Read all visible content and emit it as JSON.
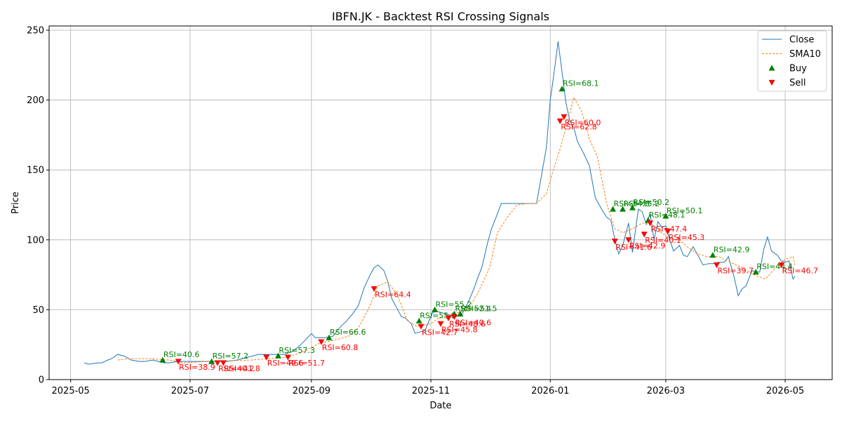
{
  "chart_data": {
    "type": "line",
    "title": "IBFN.JK - Backtest RSI Crossing Signals",
    "xlabel": "Date",
    "ylabel": "Price",
    "ylim": [
      0,
      253
    ],
    "yticks": [
      0,
      50,
      100,
      150,
      200,
      250
    ],
    "xlim": [
      "2025-04-20",
      "2026-05-25"
    ],
    "xticks": [
      "2025-05-01",
      "2025-07-01",
      "2025-09-01",
      "2025-11-01",
      "2026-01-01",
      "2026-03-01",
      "2026-05-01"
    ],
    "xtick_labels": [
      "2025-05",
      "2025-07",
      "2025-09",
      "2025-11",
      "2026-01",
      "2026-03",
      "2026-05"
    ],
    "grid": true,
    "legend_position": "top-right",
    "colors": {
      "close": "#1f77b4",
      "sma": "#ff7f0e",
      "buy": "#008000",
      "sell": "#ff0000"
    },
    "series": [
      {
        "name": "Close",
        "x": [
          "2025-05-08",
          "2025-05-10",
          "2025-05-15",
          "2025-05-17",
          "2025-05-20",
          "2025-05-22",
          "2025-05-25",
          "2025-05-28",
          "2025-06-01",
          "2025-06-05",
          "2025-06-08",
          "2025-06-12",
          "2025-06-15",
          "2025-06-18",
          "2025-06-20",
          "2025-06-25",
          "2025-06-28",
          "2025-07-05",
          "2025-07-15",
          "2025-07-20",
          "2025-07-25",
          "2025-08-05",
          "2025-08-12",
          "2025-08-18",
          "2025-08-22",
          "2025-08-25",
          "2025-08-28",
          "2025-09-01",
          "2025-09-03",
          "2025-09-08",
          "2025-09-12",
          "2025-09-16",
          "2025-09-19",
          "2025-09-22",
          "2025-09-25",
          "2025-09-28",
          "2025-10-01",
          "2025-10-03",
          "2025-10-05",
          "2025-10-08",
          "2025-10-10",
          "2025-10-12",
          "2025-10-17",
          "2025-10-19",
          "2025-10-22",
          "2025-10-24",
          "2025-10-26",
          "2025-10-29",
          "2025-10-31",
          "2025-11-02",
          "2025-11-04",
          "2025-11-06",
          "2025-11-09",
          "2025-11-11",
          "2025-11-14",
          "2025-11-17",
          "2025-11-20",
          "2025-11-23",
          "2025-11-25",
          "2025-11-27",
          "2025-11-30",
          "2025-12-02",
          "2025-12-04",
          "2025-12-07",
          "2025-12-10",
          "2025-12-13",
          "2025-12-16",
          "2025-12-19",
          "2025-12-22",
          "2025-12-25",
          "2025-12-28",
          "2025-12-30",
          "2026-01-01",
          "2026-01-03",
          "2026-01-05",
          "2026-01-07",
          "2026-01-09",
          "2026-01-11",
          "2026-01-13",
          "2026-01-15",
          "2026-01-18",
          "2026-01-21",
          "2026-01-24",
          "2026-01-26",
          "2026-01-28",
          "2026-01-30",
          "2026-02-01",
          "2026-02-03",
          "2026-02-05",
          "2026-02-07",
          "2026-02-10",
          "2026-02-12",
          "2026-02-15",
          "2026-02-17",
          "2026-02-19",
          "2026-02-21",
          "2026-02-23",
          "2026-02-25",
          "2026-02-27",
          "2026-03-01",
          "2026-03-03",
          "2026-03-05",
          "2026-03-08",
          "2026-03-10",
          "2026-03-12",
          "2026-03-15",
          "2026-03-17",
          "2026-03-20",
          "2026-03-23",
          "2026-03-25",
          "2026-03-28",
          "2026-03-31",
          "2026-04-02",
          "2026-04-05",
          "2026-04-07",
          "2026-04-09",
          "2026-04-11",
          "2026-04-14",
          "2026-04-16",
          "2026-04-18",
          "2026-04-20",
          "2026-04-22",
          "2026-04-24",
          "2026-04-27",
          "2026-04-29",
          "2026-05-01",
          "2026-05-03",
          "2026-05-05",
          "2026-05-06"
        ],
        "values": [
          12,
          11,
          12,
          12,
          14,
          15,
          18,
          17,
          14,
          13,
          13,
          14,
          13,
          12,
          12,
          13,
          13,
          13,
          13,
          13,
          14,
          18,
          18,
          18,
          20,
          23,
          27,
          33,
          30,
          30,
          31,
          38,
          42,
          47,
          53,
          66,
          75,
          80,
          82,
          78,
          70,
          58,
          45,
          44,
          40,
          33,
          34,
          35,
          42,
          48,
          49,
          48,
          47,
          46,
          45,
          47,
          55,
          65,
          73,
          80,
          98,
          108,
          115,
          126,
          126,
          126,
          126,
          126,
          126,
          126,
          150,
          166,
          200,
          220,
          242,
          220,
          198,
          185,
          180,
          170,
          162,
          153,
          130,
          125,
          120,
          116,
          114,
          100,
          90,
          96,
          112,
          91,
          122,
          120,
          111,
          119,
          100,
          113,
          109,
          110,
          100,
          92,
          96,
          89,
          88,
          95,
          90,
          82,
          83,
          83,
          84,
          84,
          88,
          73,
          60,
          65,
          67,
          78,
          77,
          77,
          93,
          102,
          92,
          89,
          85,
          84,
          85,
          72,
          74
        ],
        "x_from_index": false
      },
      {
        "name": "SMA10",
        "x": [
          "2025-05-25",
          "2025-06-01",
          "2025-06-10",
          "2025-06-20",
          "2025-06-28",
          "2025-07-10",
          "2025-08-01",
          "2025-08-20",
          "2025-08-28",
          "2025-09-05",
          "2025-09-12",
          "2025-09-20",
          "2025-09-25",
          "2025-09-30",
          "2025-10-05",
          "2025-10-10",
          "2025-10-15",
          "2025-10-20",
          "2025-10-25",
          "2025-11-01",
          "2025-11-05",
          "2025-11-10",
          "2025-11-15",
          "2025-11-20",
          "2025-11-25",
          "2025-12-01",
          "2025-12-05",
          "2025-12-10",
          "2025-12-15",
          "2025-12-20",
          "2025-12-25",
          "2025-12-30",
          "2026-01-03",
          "2026-01-06",
          "2026-01-08",
          "2026-01-10",
          "2026-01-13",
          "2026-01-17",
          "2026-01-21",
          "2026-01-25",
          "2026-01-30",
          "2026-02-03",
          "2026-02-07",
          "2026-02-12",
          "2026-02-17",
          "2026-02-22",
          "2026-02-27",
          "2026-03-04",
          "2026-03-08",
          "2026-03-12",
          "2026-03-17",
          "2026-03-22",
          "2026-03-28",
          "2026-04-03",
          "2026-04-09",
          "2026-04-15",
          "2026-04-21",
          "2026-04-26",
          "2026-05-01",
          "2026-05-05",
          "2026-05-06"
        ],
        "values": [
          14,
          15,
          15,
          14,
          12,
          13,
          14,
          16,
          20,
          26,
          28,
          31,
          37,
          50,
          67,
          70,
          60,
          42,
          38,
          40,
          44,
          46,
          48,
          50,
          62,
          80,
          105,
          116,
          125,
          126,
          126,
          133,
          152,
          165,
          175,
          185,
          202,
          192,
          172,
          160,
          125,
          108,
          105,
          108,
          112,
          111,
          105,
          100,
          100,
          95,
          90,
          88,
          88,
          84,
          80,
          75,
          72,
          80,
          86,
          88,
          82
        ],
        "x_from_index": false
      },
      {
        "name": "Buy",
        "marker": "triangle-up",
        "x": [
          "2025-06-17",
          "2025-07-12",
          "2025-08-15",
          "2025-09-10",
          "2025-10-26",
          "2025-11-03",
          "2025-11-13",
          "2025-11-16",
          "2026-01-07",
          "2026-02-02",
          "2026-02-07",
          "2026-02-12",
          "2026-02-20",
          "2026-03-01",
          "2026-03-25",
          "2026-04-16"
        ],
        "values": [
          14,
          13,
          17,
          30,
          42,
          50,
          47,
          47,
          208,
          122,
          122,
          123,
          114,
          117,
          89,
          77
        ],
        "labels": [
          "RSI=40.6",
          "RSI=57.2",
          "RSI=57.3",
          "RSI=66.6",
          "RSI=55.2",
          "RSI=55.2",
          "RSI=52.4",
          "RSI=51.5",
          "RSI=68.1",
          "RSI=54.5",
          "RSI=55.2",
          "RSI=50.2",
          "RSI=48.1",
          "RSI=50.1",
          "RSI=42.9",
          "RSI=44.4"
        ]
      },
      {
        "name": "Sell",
        "marker": "triangle-down",
        "x": [
          "2025-06-25",
          "2025-07-15",
          "2025-07-18",
          "2025-08-09",
          "2025-08-20",
          "2025-09-06",
          "2025-10-03",
          "2025-10-27",
          "2025-11-06",
          "2025-11-10",
          "2025-11-13",
          "2026-01-06",
          "2026-01-08",
          "2026-02-03",
          "2026-02-10",
          "2026-02-18",
          "2026-02-21",
          "2026-03-02",
          "2026-03-27",
          "2026-04-29"
        ],
        "values": [
          13,
          12,
          12,
          16,
          16,
          27,
          65,
          38,
          40,
          44,
          45,
          185,
          188,
          99,
          100,
          104,
          112,
          106,
          82,
          82
        ],
        "labels": [
          "RSI=38.9",
          "RSI=40.2",
          "RSI=41.8",
          "RSI=49.6",
          "RSI=51.7",
          "RSI=60.8",
          "RSI=64.4",
          "RSI=42.7",
          "RSI=45.8",
          "RSI=48.6",
          "RSI=40.6",
          "RSI=62.8",
          "RSI=60.0",
          "RSI=41.6",
          "RSI=42.9",
          "RSI=40.1",
          "RSI=47.4",
          "RSI=45.3",
          "RSI=39.7",
          "RSI=46.7"
        ]
      }
    ]
  }
}
